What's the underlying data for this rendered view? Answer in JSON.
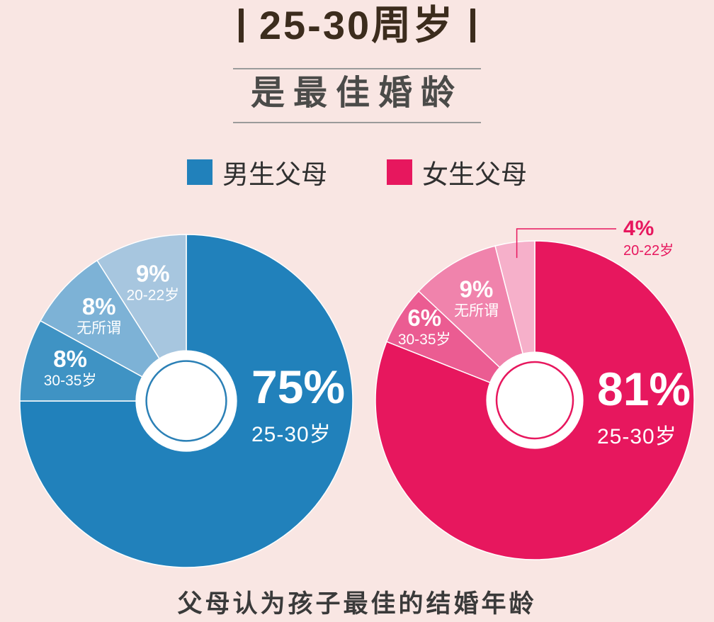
{
  "title": {
    "text": "25-30周岁",
    "subtitle": "是最佳婚龄"
  },
  "legend": {
    "items": [
      {
        "label": "男生父母",
        "color": "#2181bb"
      },
      {
        "label": "女生父母",
        "color": "#e7175e"
      }
    ]
  },
  "caption": "父母认为孩子最佳的结婚年龄",
  "colors": {
    "background": "#f9e6e3",
    "title_text": "#3c2c1d",
    "subtitle_text": "#4b4b49",
    "divider": "#9b9b9b",
    "legend_text": "#303030",
    "caption_text": "#3a3a3a",
    "slice_label_text": "#ffffff"
  },
  "chart_data": [
    {
      "type": "pie",
      "series_name": "男生父母",
      "donut": true,
      "start": "top",
      "clockwise": true,
      "accent": "#2b80b6",
      "slices": [
        {
          "label": "25-30岁",
          "value": 75,
          "color": "#2181bb",
          "main": true
        },
        {
          "label": "30-35岁",
          "value": 8,
          "color": "#3f93c4"
        },
        {
          "label": "无所谓",
          "value": 8,
          "color": "#7db2d6"
        },
        {
          "label": "20-22岁",
          "value": 9,
          "color": "#a7c6df"
        }
      ]
    },
    {
      "type": "pie",
      "series_name": "女生父母",
      "donut": true,
      "start": "top",
      "clockwise": true,
      "accent": "#e7175e",
      "slices": [
        {
          "label": "25-30岁",
          "value": 81,
          "color": "#e7175e",
          "main": true
        },
        {
          "label": "30-35岁",
          "value": 6,
          "color": "#eb5c92",
          "label_r": 0.82
        },
        {
          "label": "无所谓",
          "value": 9,
          "color": "#f083ac"
        },
        {
          "label": "20-22岁",
          "value": 4,
          "color": "#f6b0ca",
          "callout": true
        }
      ]
    }
  ]
}
